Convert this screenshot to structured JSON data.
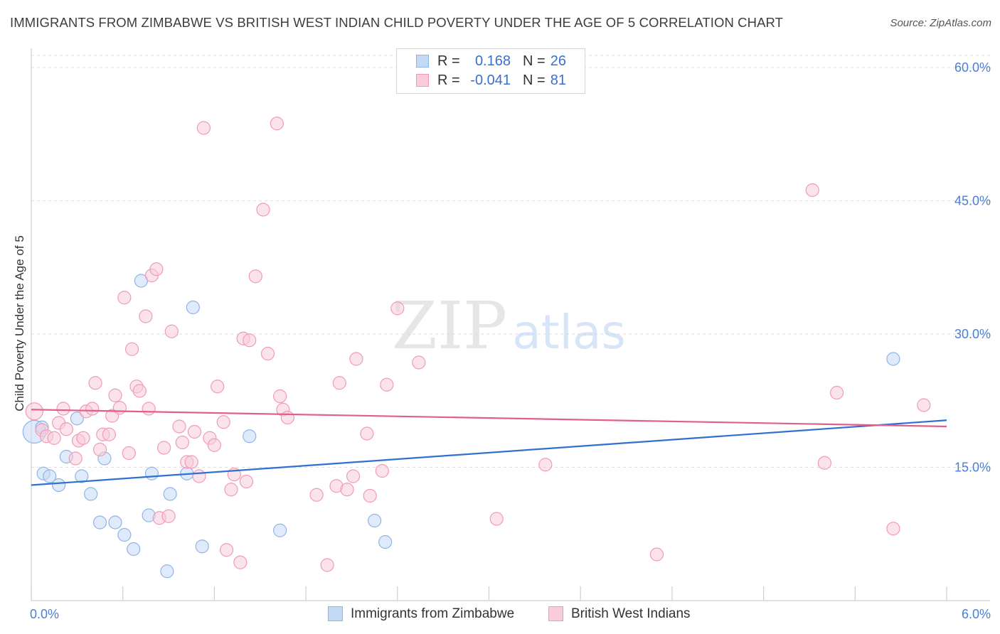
{
  "title": "IMMIGRANTS FROM ZIMBABWE VS BRITISH WEST INDIAN CHILD POVERTY UNDER THE AGE OF 5 CORRELATION CHART",
  "source": "Source: ZipAtlas.com",
  "watermark": {
    "zip": "ZIP",
    "atlas": "atlas"
  },
  "colors": {
    "blue": "#3070d0",
    "blue_fill": "#c4d9f5",
    "blue_stroke": "#8fb4e8",
    "pink": "#e0608a",
    "pink_fill": "#f8ccda",
    "pink_stroke": "#f09ab8",
    "tick_label": "#4a7fd4",
    "grid": "#dedede"
  },
  "legend": {
    "rows": [
      {
        "r_label": "R =",
        "r_value": "0.168",
        "n_label": "N =",
        "n_value": "26",
        "color": "blue"
      },
      {
        "r_label": "R =",
        "r_value": "-0.041",
        "n_label": "N =",
        "n_value": "81",
        "color": "pink"
      }
    ]
  },
  "bottom_legend": {
    "items": [
      {
        "label": "Immigrants from Zimbabwe",
        "color": "blue"
      },
      {
        "label": "British West Indians",
        "color": "pink"
      }
    ]
  },
  "chart_data": {
    "type": "scatter",
    "title": "IMMIGRANTS FROM ZIMBABWE VS BRITISH WEST INDIAN CHILD POVERTY UNDER THE AGE OF 5 CORRELATION CHART",
    "xlabel": "",
    "ylabel": "Child Poverty Under the Age of 5",
    "xlim": [
      0.0,
      6.0
    ],
    "ylim": [
      0.0,
      62.0
    ],
    "x_tick_labels": [
      "0.0%",
      "6.0%"
    ],
    "y_ticks": [
      15.0,
      30.0,
      45.0,
      60.0
    ],
    "y_tick_labels": [
      "15.0%",
      "30.0%",
      "45.0%",
      "60.0%"
    ],
    "grid": true,
    "legend_position": "top-center",
    "series": [
      {
        "name": "Immigrants from Zimbabwe",
        "color": "blue",
        "trend": {
          "x": [
            0.0,
            6.0
          ],
          "y": [
            13.0,
            20.3
          ]
        },
        "points": [
          [
            0.02,
            19.0,
            16
          ],
          [
            0.07,
            19.5,
            9
          ],
          [
            0.08,
            14.3,
            9
          ],
          [
            0.12,
            14.0,
            9
          ],
          [
            0.18,
            13.0,
            9
          ],
          [
            0.23,
            16.2,
            9
          ],
          [
            0.3,
            20.5,
            9
          ],
          [
            0.33,
            14.0,
            9
          ],
          [
            0.39,
            12.0,
            9
          ],
          [
            0.45,
            8.8,
            9
          ],
          [
            0.48,
            16.0,
            9
          ],
          [
            0.55,
            8.8,
            9
          ],
          [
            0.61,
            7.4,
            9
          ],
          [
            0.67,
            5.8,
            9
          ],
          [
            0.72,
            36.0,
            9
          ],
          [
            0.77,
            9.6,
            9
          ],
          [
            0.79,
            14.3,
            9
          ],
          [
            0.89,
            3.3,
            9
          ],
          [
            0.91,
            12.0,
            9
          ],
          [
            1.02,
            14.3,
            9
          ],
          [
            1.06,
            33.0,
            9
          ],
          [
            1.12,
            6.1,
            9
          ],
          [
            1.43,
            18.5,
            9
          ],
          [
            1.63,
            7.9,
            9
          ],
          [
            2.25,
            9.0,
            9
          ],
          [
            2.32,
            6.6,
            9
          ],
          [
            5.65,
            27.2,
            9
          ]
        ]
      },
      {
        "name": "British West Indians",
        "color": "pink",
        "trend": {
          "x": [
            0.0,
            6.0
          ],
          "y": [
            21.5,
            19.6
          ]
        },
        "points": [
          [
            0.02,
            21.3,
            12
          ],
          [
            0.07,
            19.2,
            9
          ],
          [
            0.1,
            18.5,
            9
          ],
          [
            0.15,
            18.3,
            9
          ],
          [
            0.18,
            20.0,
            9
          ],
          [
            0.21,
            21.6,
            9
          ],
          [
            0.23,
            19.3,
            9
          ],
          [
            0.29,
            16.0,
            9
          ],
          [
            0.31,
            18.0,
            9
          ],
          [
            0.34,
            18.3,
            9
          ],
          [
            0.36,
            21.3,
            9
          ],
          [
            0.4,
            21.6,
            9
          ],
          [
            0.42,
            24.5,
            9
          ],
          [
            0.45,
            17.0,
            9
          ],
          [
            0.47,
            18.7,
            9
          ],
          [
            0.51,
            18.7,
            9
          ],
          [
            0.53,
            20.8,
            9
          ],
          [
            0.55,
            23.1,
            9
          ],
          [
            0.58,
            21.7,
            9
          ],
          [
            0.61,
            34.1,
            9
          ],
          [
            0.64,
            16.6,
            9
          ],
          [
            0.66,
            28.3,
            9
          ],
          [
            0.69,
            24.1,
            9
          ],
          [
            0.71,
            23.6,
            9
          ],
          [
            0.75,
            32.0,
            9
          ],
          [
            0.77,
            21.6,
            9
          ],
          [
            0.79,
            36.6,
            9
          ],
          [
            0.82,
            37.3,
            9
          ],
          [
            0.84,
            9.3,
            9
          ],
          [
            0.87,
            17.2,
            9
          ],
          [
            0.9,
            9.5,
            9
          ],
          [
            0.92,
            30.3,
            9
          ],
          [
            0.97,
            19.6,
            9
          ],
          [
            0.99,
            17.8,
            9
          ],
          [
            1.02,
            15.6,
            9
          ],
          [
            1.05,
            15.6,
            9
          ],
          [
            1.07,
            19.0,
            9
          ],
          [
            1.1,
            14.0,
            9
          ],
          [
            1.13,
            53.2,
            9
          ],
          [
            1.17,
            18.3,
            9
          ],
          [
            1.2,
            17.5,
            9
          ],
          [
            1.22,
            24.1,
            9
          ],
          [
            1.26,
            20.1,
            9
          ],
          [
            1.28,
            5.7,
            9
          ],
          [
            1.31,
            12.5,
            9
          ],
          [
            1.33,
            14.2,
            9
          ],
          [
            1.37,
            4.3,
            9
          ],
          [
            1.39,
            29.5,
            9
          ],
          [
            1.41,
            13.4,
            9
          ],
          [
            1.43,
            29.3,
            9
          ],
          [
            1.47,
            36.5,
            9
          ],
          [
            1.52,
            44.0,
            9
          ],
          [
            1.55,
            27.8,
            9
          ],
          [
            1.61,
            53.7,
            9
          ],
          [
            1.63,
            23.0,
            9
          ],
          [
            1.65,
            21.5,
            9
          ],
          [
            1.68,
            20.6,
            9
          ],
          [
            1.87,
            11.9,
            9
          ],
          [
            1.94,
            4.0,
            9
          ],
          [
            2.0,
            12.9,
            9
          ],
          [
            2.02,
            24.5,
            9
          ],
          [
            2.07,
            12.5,
            9
          ],
          [
            2.11,
            14.0,
            9
          ],
          [
            2.13,
            27.2,
            9
          ],
          [
            2.2,
            18.8,
            9
          ],
          [
            2.22,
            11.8,
            9
          ],
          [
            2.3,
            14.6,
            9
          ],
          [
            2.33,
            24.3,
            9
          ],
          [
            2.4,
            32.9,
            9
          ],
          [
            2.54,
            26.8,
            9
          ],
          [
            3.05,
            9.2,
            9
          ],
          [
            3.37,
            15.3,
            9
          ],
          [
            4.1,
            5.2,
            9
          ],
          [
            5.12,
            46.2,
            9
          ],
          [
            5.2,
            15.5,
            9
          ],
          [
            5.28,
            23.4,
            9
          ],
          [
            5.65,
            8.1,
            9
          ],
          [
            5.85,
            22.0,
            9
          ]
        ]
      }
    ]
  }
}
